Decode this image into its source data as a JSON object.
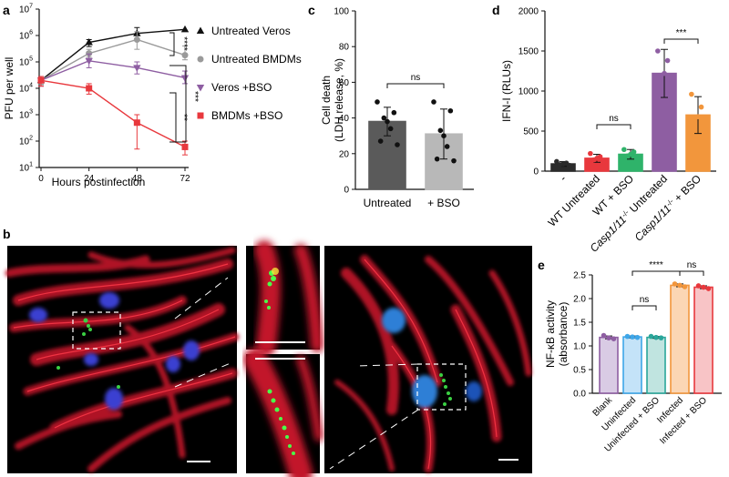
{
  "panels": {
    "a": "a",
    "b": "b",
    "c": "c",
    "d": "d",
    "e": "e"
  },
  "chart_data": [
    {
      "panel": "a",
      "type": "line",
      "xlabel": "Hours postinfection",
      "ylabel": "PFU per well",
      "x": [
        0,
        24,
        48,
        72
      ],
      "xticks": [
        "0",
        "24",
        "48",
        "72"
      ],
      "yscale": "log",
      "ylim": [
        10,
        10000000
      ],
      "yticks": [
        {
          "base": "10",
          "exp": "1"
        },
        {
          "base": "10",
          "exp": "2"
        },
        {
          "base": "10",
          "exp": "3"
        },
        {
          "base": "10",
          "exp": "4"
        },
        {
          "base": "10",
          "exp": "5"
        },
        {
          "base": "10",
          "exp": "6"
        },
        {
          "base": "10",
          "exp": "7"
        }
      ],
      "series": [
        {
          "name": "Untreated Veros",
          "marker": "triangle-up",
          "color": "#111111",
          "values": [
            20000,
            550000,
            1200000,
            1700000
          ],
          "err_low": [
            14000,
            380000,
            700000,
            1700000
          ],
          "err_high": [
            28000,
            700000,
            2000000,
            1700000
          ]
        },
        {
          "name": "Untreated BMDMs",
          "marker": "circle",
          "color": "#9a9a9a",
          "values": [
            20000,
            210000,
            700000,
            180000
          ],
          "err_low": [
            14000,
            150000,
            300000,
            120000
          ],
          "err_high": [
            28000,
            300000,
            1400000,
            400000
          ]
        },
        {
          "name": "Veros +BSO",
          "marker": "triangle-down",
          "color": "#8e5ea2",
          "values": [
            20000,
            110000,
            60000,
            25000
          ],
          "err_low": [
            12000,
            60000,
            35000,
            15000
          ],
          "err_high": [
            28000,
            200000,
            100000,
            45000
          ]
        },
        {
          "name": "BMDMs +BSO",
          "marker": "square",
          "color": "#e8383d",
          "values": [
            20000,
            10000,
            500,
            60
          ],
          "err_low": [
            12000,
            6000,
            50,
            30
          ],
          "err_high": [
            28000,
            15000,
            1000,
            100
          ]
        }
      ],
      "significance": [
        "****",
        "***",
        "**"
      ],
      "legend": "right"
    },
    {
      "panel": "c",
      "type": "bar",
      "ylabel_line1": "Cell death",
      "ylabel_line2": "(LDH release, %)",
      "categories": [
        "Untreated",
        "+ BSO"
      ],
      "values": [
        38,
        31
      ],
      "err": [
        8,
        14
      ],
      "colors": [
        "#5a5a5a",
        "#b8b8b8"
      ],
      "points": [
        [
          49,
          43,
          40,
          38,
          34,
          27,
          25
        ],
        [
          49,
          44,
          33,
          30,
          24,
          17,
          16
        ]
      ],
      "ylim": [
        0,
        100
      ],
      "yticks": [
        "0",
        "20",
        "40",
        "60",
        "80",
        "100"
      ],
      "significance": [
        "ns"
      ]
    },
    {
      "panel": "d",
      "type": "bar",
      "ylabel": "IFN-I (RLUs)",
      "categories": [
        "-",
        "WT Untreated",
        "WT + BSO",
        "Casp1/11-/- Untreated",
        "Casp1/11-/- + BSO"
      ],
      "tick_labels": [
        {
          "pre": "-"
        },
        {
          "pre": "WT Untreated"
        },
        {
          "pre": "WT + BSO"
        },
        {
          "italic": "Casp1/11",
          "sup": "-/-",
          "post": " Untreated"
        },
        {
          "italic": "Casp1/11",
          "sup": "-/-",
          "post": " + BSO"
        }
      ],
      "values": [
        90,
        160,
        210,
        1220,
        700
      ],
      "err": [
        30,
        50,
        60,
        300,
        230
      ],
      "colors": [
        "#2b2b2b",
        "#e8383d",
        "#2fb36a",
        "#8e5ea2",
        "#f2963c"
      ],
      "points": [
        [
          120,
          100,
          90,
          80,
          70
        ],
        [
          220,
          180,
          160,
          140,
          110
        ],
        [
          270,
          240,
          210,
          190,
          160
        ],
        [
          1500,
          1380,
          1220,
          1020,
          900
        ],
        [
          960,
          800,
          680,
          520,
          450
        ]
      ],
      "ylim": [
        0,
        2000
      ],
      "yticks": [
        "0",
        "500",
        "1000",
        "1500",
        "2000"
      ],
      "significance": [
        "ns",
        "***"
      ]
    },
    {
      "panel": "e",
      "type": "bar",
      "ylabel_line1": "NF-κB activity",
      "ylabel_line2": "(absorbance)",
      "categories": [
        "Blank",
        "Uninfected",
        "Uninfected + BSO",
        "Infected",
        "Infected + BSO"
      ],
      "values": [
        1.18,
        1.19,
        1.18,
        2.28,
        2.24
      ],
      "err": [
        0.03,
        0.02,
        0.02,
        0.03,
        0.03
      ],
      "colors": [
        "#8e5ea2",
        "#3ea6e8",
        "#2aa69a",
        "#f2963c",
        "#e8383d"
      ],
      "fills": [
        "#d9cbe4",
        "#c4e3f8",
        "#c0e4e0",
        "#fbd6b4",
        "#f8c4c6"
      ],
      "points": [
        [
          1.22,
          1.17,
          1.15
        ],
        [
          1.2,
          1.19,
          1.18
        ],
        [
          1.2,
          1.18,
          1.17
        ],
        [
          2.31,
          2.28,
          2.25
        ],
        [
          2.27,
          2.24,
          2.21
        ]
      ],
      "ylim": [
        0,
        2.5
      ],
      "yticks": [
        "0.0",
        "0.5",
        "1.0",
        "1.5",
        "2.0",
        "2.5"
      ],
      "significance": [
        "ns",
        "****",
        "ns"
      ]
    }
  ]
}
